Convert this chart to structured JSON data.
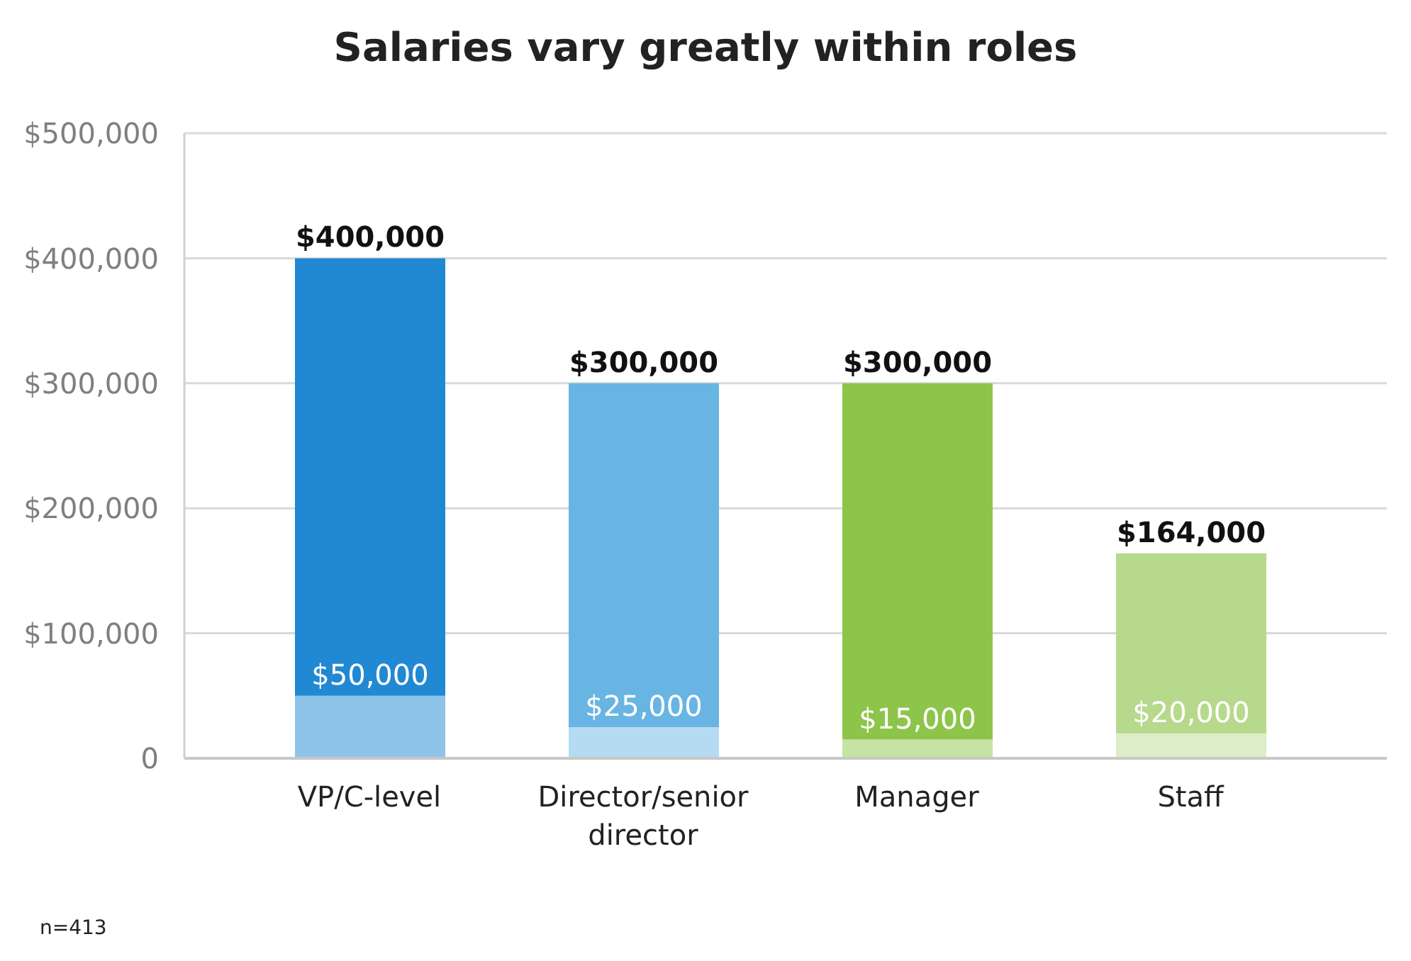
{
  "chart_data": {
    "type": "bar",
    "title": "Salaries vary greatly within roles",
    "categories": [
      "VP/C-level",
      "Director/senior director",
      "Manager",
      "Staff"
    ],
    "stacked": true,
    "series": [
      {
        "colors": [
          "#8ec3ea",
          "#b5dbf2",
          "#c6e3a4",
          "#dcedc7"
        ],
        "values": [
          50000,
          25000,
          15000,
          20000
        ],
        "value_labels": [
          "$50,000",
          "$25,000",
          "$15,000",
          "$20,000"
        ]
      },
      {
        "colors": [
          "#2188d4",
          "#68b5e3",
          "#8dc54b",
          "#b6d98b"
        ],
        "values": [
          350000,
          275000,
          285000,
          144000
        ]
      }
    ],
    "totals": [
      "$400,000",
      "$300,000",
      "$300,000",
      "$164,000"
    ],
    "ylim": [
      0,
      500000
    ],
    "yticks": [
      0,
      {
        "value": 100000,
        "label": "$100,000"
      },
      {
        "value": 200000,
        "label": "$200,000"
      },
      {
        "value": 300000,
        "label": "$300,000"
      },
      {
        "value": 400000,
        "label": "$400,000"
      },
      {
        "value": 500000,
        "label": "$500,000"
      }
    ],
    "grid": "y",
    "legend": false,
    "annotations": [
      "n=413"
    ]
  }
}
